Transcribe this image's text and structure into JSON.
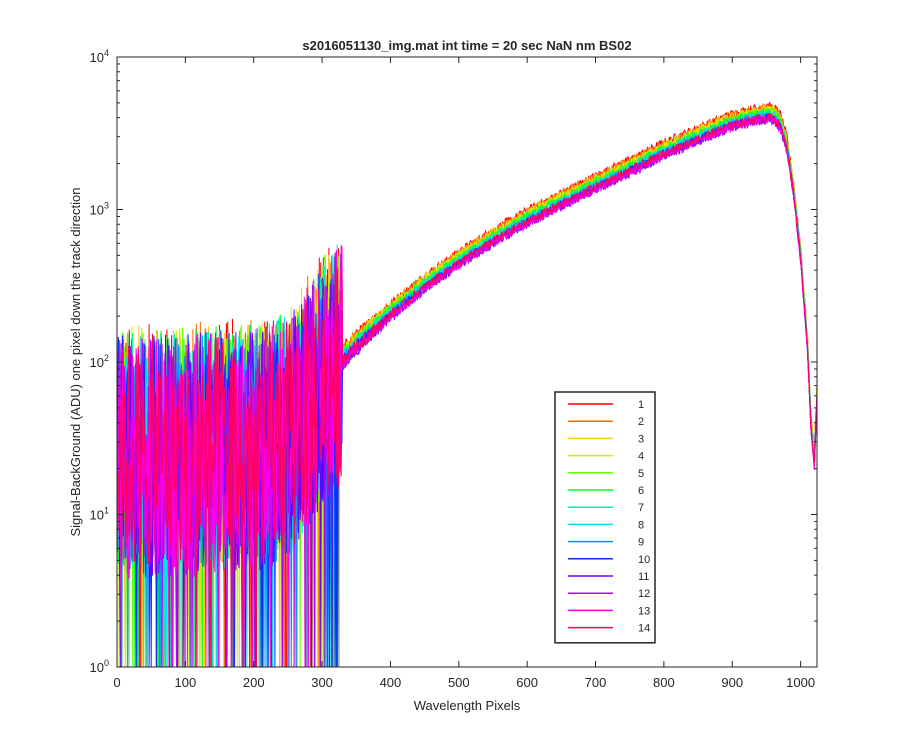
{
  "chart_data": {
    "type": "line",
    "title": "s2016051130_img.mat int time = 20 sec  NaN nm BS02",
    "xlabel": "Wavelength Pixels",
    "ylabel": "Signal-BackGround (ADU) one pixel down the track direction",
    "xlim": [
      0,
      1024
    ],
    "ylim": [
      1,
      10000
    ],
    "yscale": "log",
    "grid": false,
    "legend_position": "lower-right",
    "xticks": [
      0,
      100,
      200,
      300,
      400,
      500,
      600,
      700,
      800,
      900,
      1000
    ],
    "xtick_labels": [
      "0",
      "100",
      "200",
      "300",
      "400",
      "500",
      "600",
      "700",
      "800",
      "900",
      "1000"
    ],
    "yticks": [
      1,
      10,
      100,
      1000,
      10000
    ],
    "ytick_labels": [
      {
        "base": "10",
        "exp": "0"
      },
      {
        "base": "10",
        "exp": "1"
      },
      {
        "base": "10",
        "exp": "2"
      },
      {
        "base": "10",
        "exp": "3"
      },
      {
        "base": "10",
        "exp": "4"
      }
    ],
    "series_note": "Each series is approximately the same curve with a small per-series scale factor; values are read at these x positions. Below ~x=300 the data is noise between ~1 and ~100.",
    "x": [
      0,
      50,
      100,
      150,
      200,
      250,
      300,
      350,
      400,
      450,
      500,
      550,
      600,
      650,
      700,
      750,
      800,
      850,
      900,
      925,
      950,
      960,
      970,
      980,
      990,
      1000,
      1010,
      1015,
      1020,
      1024
    ],
    "base_values": [
      25,
      25,
      26,
      27,
      28,
      32,
      75,
      130,
      210,
      320,
      460,
      640,
      860,
      1120,
      1450,
      1850,
      2400,
      3000,
      3700,
      3950,
      4150,
      4100,
      3700,
      2600,
      1300,
      500,
      130,
      40,
      22,
      60
    ],
    "series": [
      {
        "name": "1",
        "color": "#ff0000",
        "scale": 1.14
      },
      {
        "name": "2",
        "color": "#ff6a00",
        "scale": 1.12
      },
      {
        "name": "3",
        "color": "#ffcc00",
        "scale": 1.1
      },
      {
        "name": "4",
        "color": "#c8f000",
        "scale": 1.08
      },
      {
        "name": "5",
        "color": "#66ff00",
        "scale": 1.06
      },
      {
        "name": "6",
        "color": "#00ff2a",
        "scale": 1.04
      },
      {
        "name": "7",
        "color": "#00f0a0",
        "scale": 1.02
      },
      {
        "name": "8",
        "color": "#00e0ff",
        "scale": 1.0
      },
      {
        "name": "9",
        "color": "#0096ff",
        "scale": 0.98
      },
      {
        "name": "10",
        "color": "#0030ff",
        "scale": 0.96
      },
      {
        "name": "11",
        "color": "#6a00ff",
        "scale": 0.94
      },
      {
        "name": "12",
        "color": "#b400ff",
        "scale": 0.93
      },
      {
        "name": "13",
        "color": "#ff00e6",
        "scale": 0.95
      },
      {
        "name": "14",
        "color": "#ff0064",
        "scale": 0.97
      }
    ]
  }
}
